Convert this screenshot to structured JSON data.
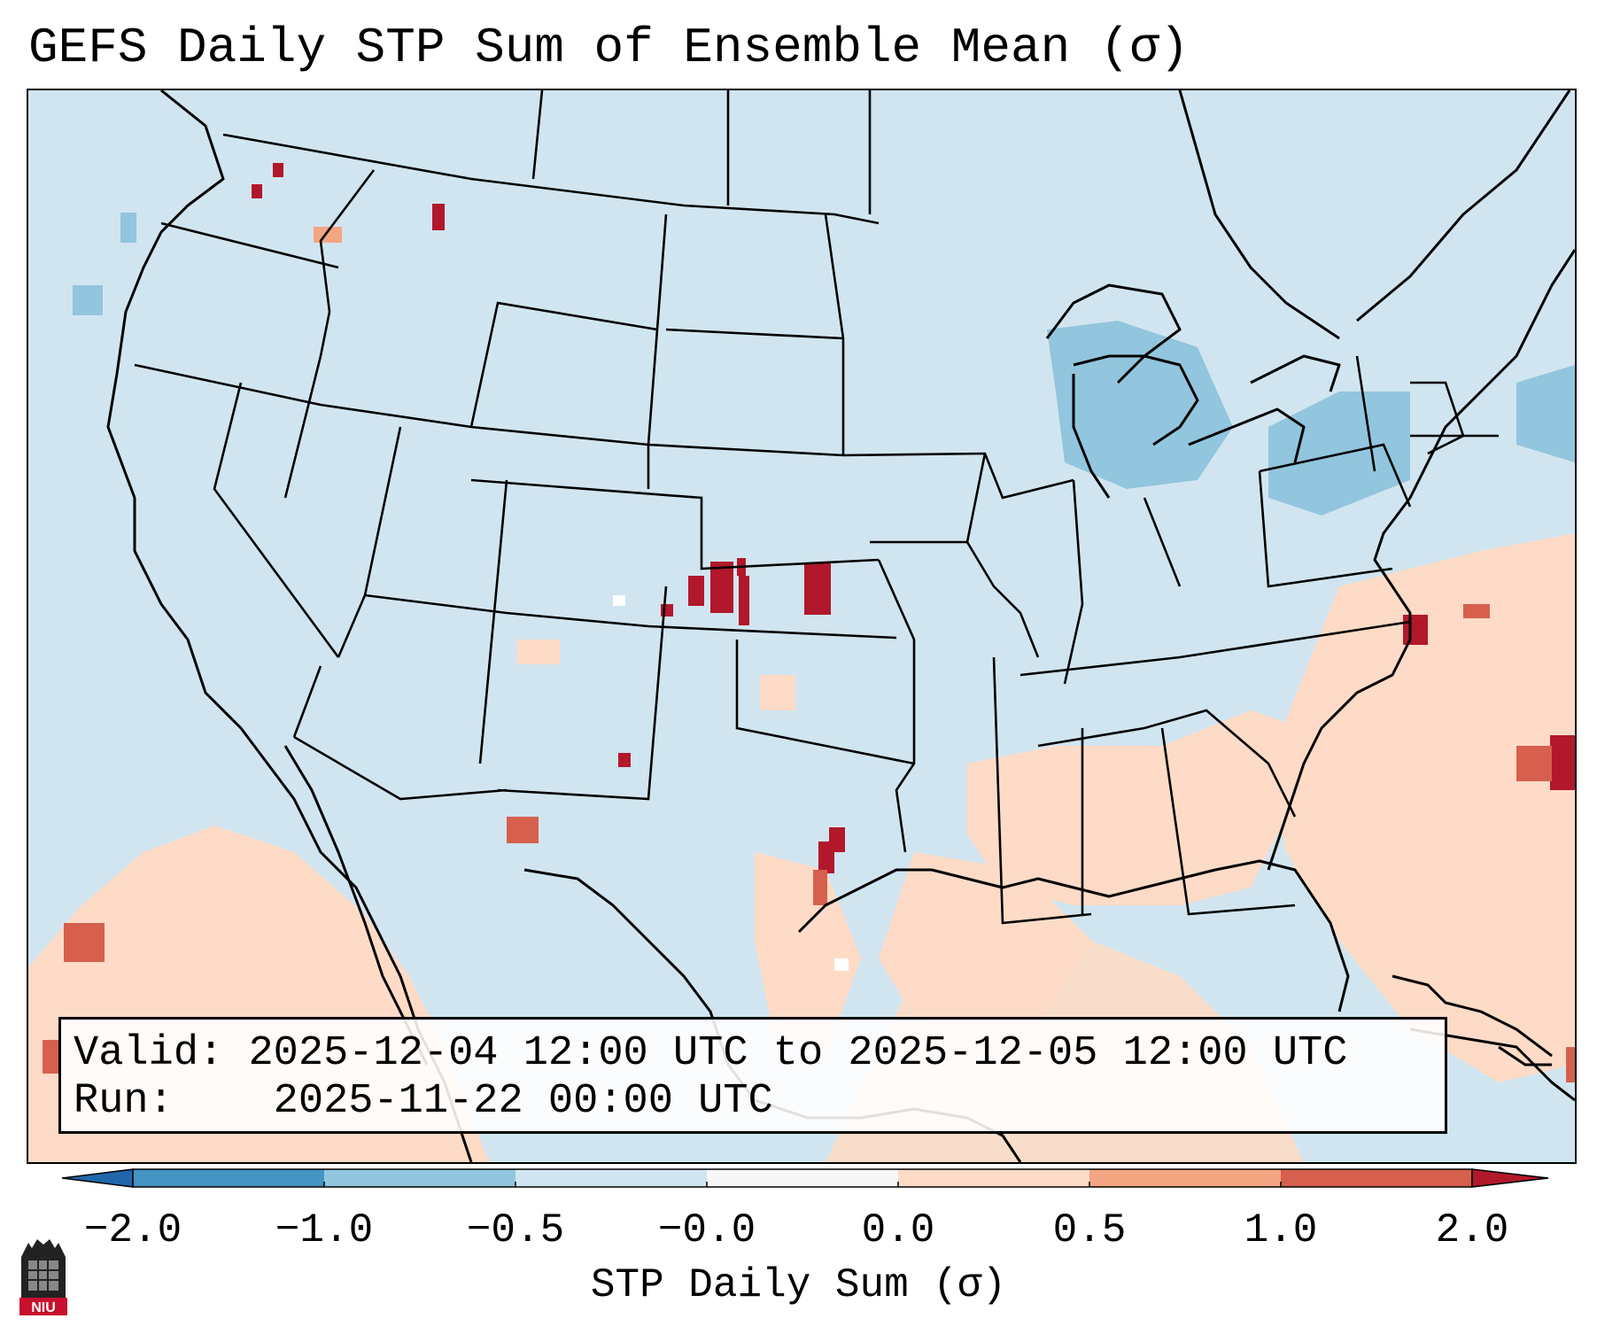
{
  "title": "GEFS Daily STP Sum of Ensemble Mean (σ)",
  "info": {
    "valid_label": "Valid:",
    "valid_value": "2025-12-04 12:00 UTC to 2025-12-05 12:00 UTC",
    "run_label": "Run:",
    "run_value": "2025-11-22 00:00 UTC"
  },
  "colorbar": {
    "label": "STP Daily Sum (σ)",
    "ticks": [
      "−2.0",
      "−1.0",
      "−0.5",
      "−0.0",
      "0.0",
      "0.5",
      "1.0",
      "2.0"
    ],
    "colors": [
      "#4393c3",
      "#92c5de",
      "#d1e5f0",
      "#f7f7f7",
      "#fddbc7",
      "#f4a582",
      "#d6604d",
      "#b2182b"
    ],
    "extend_low_color": "#2166ac",
    "extend_high_color": "#b2182b"
  },
  "logo": {
    "text": "NIU"
  },
  "map": {
    "background_class": "-0.5 to -0.0",
    "features": [
      "land",
      "coastlines",
      "state-borders",
      "country-borders"
    ]
  }
}
